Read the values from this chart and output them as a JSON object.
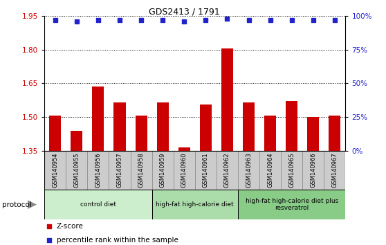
{
  "title": "GDS2413 / 1791",
  "samples": [
    "GSM140954",
    "GSM140955",
    "GSM140956",
    "GSM140957",
    "GSM140958",
    "GSM140959",
    "GSM140960",
    "GSM140961",
    "GSM140962",
    "GSM140963",
    "GSM140964",
    "GSM140965",
    "GSM140966",
    "GSM140967"
  ],
  "z_scores": [
    1.505,
    1.44,
    1.635,
    1.565,
    1.505,
    1.565,
    1.365,
    1.555,
    1.805,
    1.565,
    1.505,
    1.57,
    1.5,
    1.505
  ],
  "percentile_ranks": [
    97,
    96,
    97,
    97,
    97,
    97,
    96,
    97,
    98,
    97,
    97,
    97,
    97,
    97
  ],
  "ylim_left": [
    1.35,
    1.95
  ],
  "yticks_left": [
    1.35,
    1.5,
    1.65,
    1.8,
    1.95
  ],
  "yticks_right": [
    0,
    25,
    50,
    75,
    100
  ],
  "bar_color": "#cc0000",
  "dot_color": "#2222cc",
  "bar_width": 0.55,
  "protocol_groups": [
    {
      "label": "control diet",
      "start": 0,
      "end": 4,
      "color": "#cceecc"
    },
    {
      "label": "high-fat high-calorie diet",
      "start": 5,
      "end": 8,
      "color": "#aaddaa"
    },
    {
      "label": "high-fat high-calorie diet plus\nresveratrol",
      "start": 9,
      "end": 13,
      "color": "#88cc88"
    }
  ],
  "tick_label_color_left": "#cc0000",
  "tick_label_color_right": "#2222cc",
  "xtick_bg_color": "#cccccc",
  "xtick_border_color": "#888888"
}
